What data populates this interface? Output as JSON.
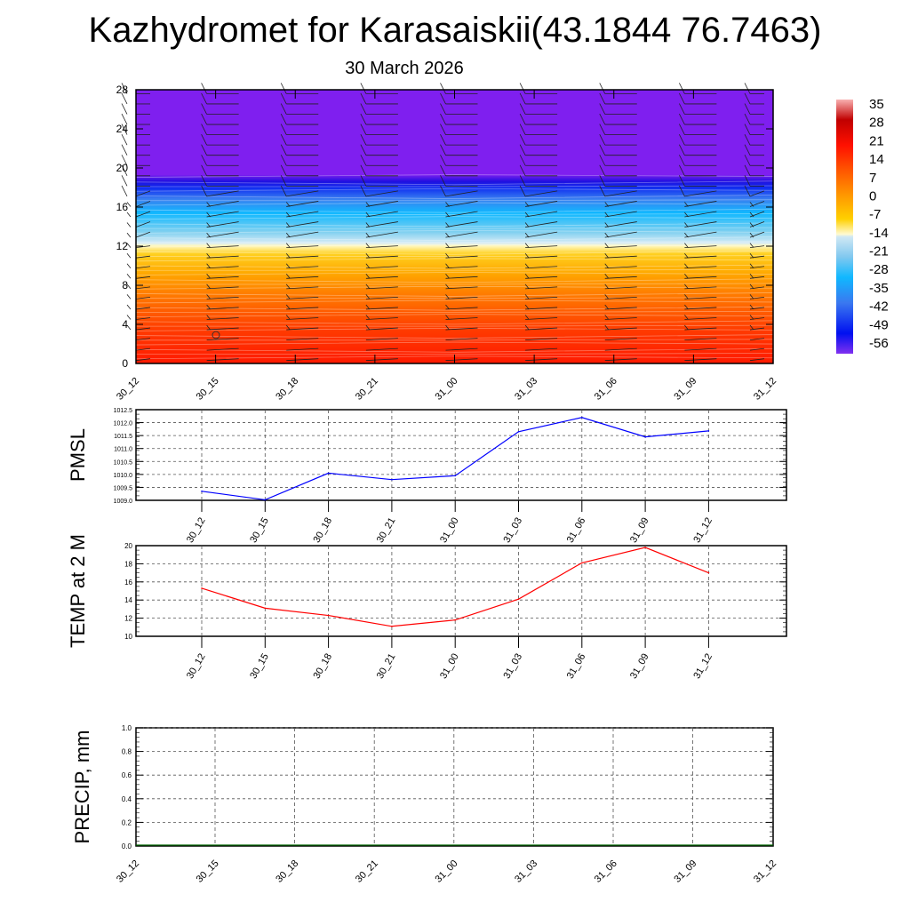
{
  "title": "Kazhydromet for Karasaiskii(43.1844 76.7463)",
  "subtitle": "30 March 2026",
  "colors": {
    "pmsl_line": "#0000ff",
    "temp_line": "#ff0000",
    "precip_line": "#006400",
    "upper_fill": "#7f1fef"
  },
  "chart_data": [
    {
      "type": "heatmap",
      "name": "cross-section",
      "title": "",
      "ylabel": "",
      "ylim": [
        0,
        28
      ],
      "yticks": [
        "0",
        "4",
        "8",
        "12",
        "16",
        "20",
        "24",
        "28"
      ],
      "xticks": [
        "30_12",
        "30_15",
        "30_18",
        "30_21",
        "31_00",
        "31_03",
        "31_06",
        "31_09",
        "31_12"
      ],
      "colorbar_labels": [
        "35",
        "28",
        "21",
        "14",
        "7",
        "0",
        "-7",
        "-14",
        "-21",
        "-28",
        "-35",
        "-42",
        "-49",
        "-56"
      ],
      "freezing_level_approx": 12.2,
      "overlay": "wind barbs"
    },
    {
      "type": "line",
      "name": "pmsl",
      "ylabel": "PMSL",
      "ylim": [
        1009.0,
        1012.5
      ],
      "yticks": [
        "1009.0",
        "1009.5",
        "1010.0",
        "1010.5",
        "1011.0",
        "1011.5",
        "1012.0",
        "1012.5"
      ],
      "x": [
        "30_12",
        "30_15",
        "30_18",
        "30_21",
        "31_00",
        "31_03",
        "31_06",
        "31_09",
        "31_12"
      ],
      "values": [
        1009.35,
        1009.02,
        1010.05,
        1009.8,
        1009.95,
        1011.65,
        1012.2,
        1011.45,
        1011.68
      ],
      "grid": true
    },
    {
      "type": "line",
      "name": "temp",
      "ylabel": "TEMP at 2 M",
      "ylim": [
        10,
        20
      ],
      "yticks": [
        "10",
        "12",
        "14",
        "16",
        "18",
        "20"
      ],
      "x": [
        "30_12",
        "30_15",
        "30_18",
        "30_21",
        "31_00",
        "31_03",
        "31_06",
        "31_09",
        "31_12"
      ],
      "values": [
        15.3,
        13.1,
        12.3,
        11.1,
        11.8,
        14.1,
        18.1,
        19.8,
        17.0
      ],
      "grid": true
    },
    {
      "type": "line",
      "name": "precip",
      "ylabel": "PRECIP, mm",
      "ylim": [
        0,
        1
      ],
      "yticks": [
        "0.0",
        "0.2",
        "0.4",
        "0.6",
        "0.8",
        "1.0"
      ],
      "xticks": [
        "30_12",
        "30_15",
        "30_18",
        "30_21",
        "31_00",
        "31_03",
        "31_06",
        "31_09",
        "31_12"
      ],
      "values": [
        0,
        0,
        0,
        0,
        0,
        0,
        0,
        0,
        0
      ],
      "grid": true
    }
  ]
}
